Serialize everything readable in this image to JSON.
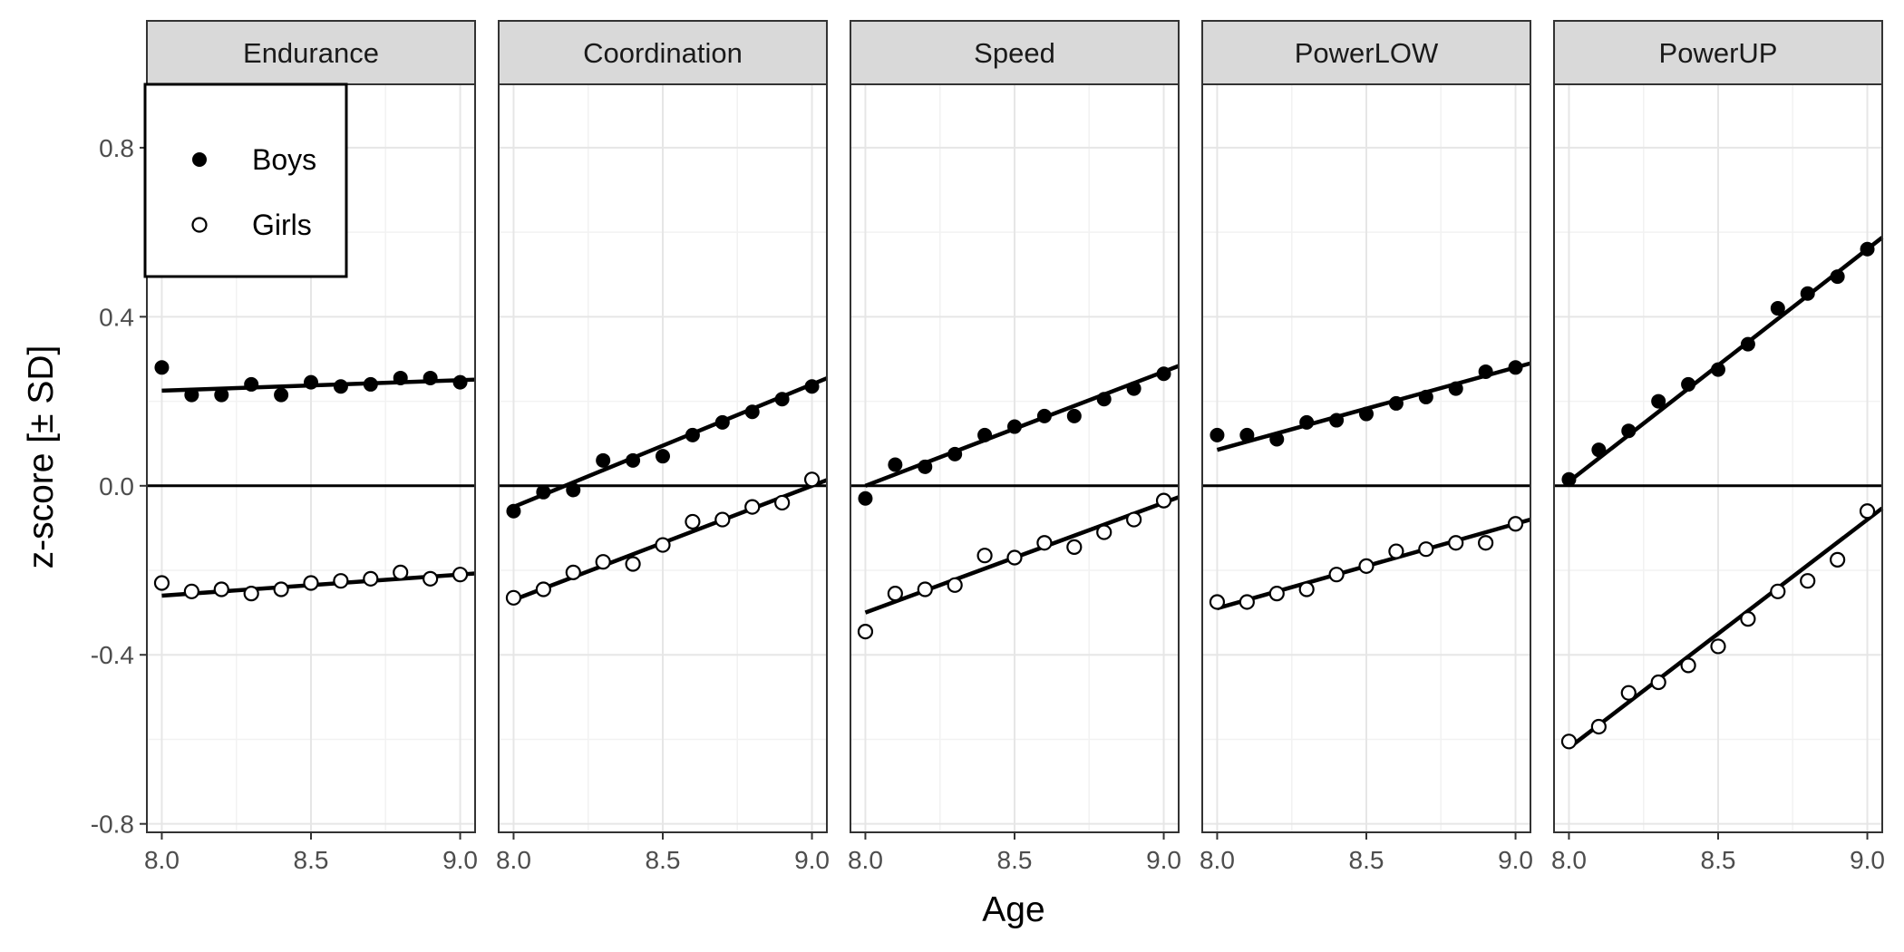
{
  "colors": {
    "strip_fill": "#d9d9d9",
    "panel_border": "#333333",
    "grid_major": "#e6e6e6",
    "grid_minor": "#f2f2f2",
    "zero_line": "#000000",
    "boys_fill": "#000000",
    "girls_fill": "#ffffff",
    "point_stroke": "#000000",
    "fit_line": "#000000"
  },
  "chart_data": {
    "type": "scatter",
    "facets": [
      "Endurance",
      "Coordination",
      "Speed",
      "PowerLOW",
      "PowerUP"
    ],
    "xlabel": "Age",
    "ylabel": "z-score [± SD]",
    "xlim": [
      7.95,
      9.05
    ],
    "ylim": [
      -0.82,
      0.95
    ],
    "x_ticks": [
      8.0,
      8.5,
      9.0
    ],
    "x_tick_labels": [
      "8.0",
      "8.5",
      "9.0"
    ],
    "y_ticks": [
      -0.8,
      -0.4,
      0.0,
      0.4,
      0.8
    ],
    "y_tick_labels": [
      "-0.8",
      "-0.4",
      "0.0",
      "0.4",
      "0.8"
    ],
    "grid": true,
    "zero_line": 0,
    "legend": {
      "position": "top-left",
      "entries": [
        {
          "label": "Boys",
          "marker": "filled-circle"
        },
        {
          "label": "Girls",
          "marker": "open-circle"
        }
      ]
    },
    "x": [
      8.0,
      8.1,
      8.2,
      8.3,
      8.4,
      8.5,
      8.6,
      8.7,
      8.8,
      8.9,
      9.0
    ],
    "panels": [
      {
        "facet": "Endurance",
        "series": [
          {
            "name": "Boys",
            "values": [
              0.28,
              0.215,
              0.215,
              0.24,
              0.215,
              0.245,
              0.235,
              0.24,
              0.255,
              0.255,
              0.245
            ],
            "fit": [
              0.225,
              0.25
            ]
          },
          {
            "name": "Girls",
            "values": [
              -0.23,
              -0.25,
              -0.245,
              -0.255,
              -0.245,
              -0.23,
              -0.225,
              -0.22,
              -0.205,
              -0.22,
              -0.21
            ],
            "fit": [
              -0.26,
              -0.21
            ]
          }
        ]
      },
      {
        "facet": "Coordination",
        "series": [
          {
            "name": "Boys",
            "values": [
              -0.06,
              -0.015,
              -0.01,
              0.06,
              0.06,
              0.07,
              0.12,
              0.15,
              0.175,
              0.205,
              0.235
            ],
            "fit": [
              -0.05,
              0.24
            ]
          },
          {
            "name": "Girls",
            "values": [
              -0.265,
              -0.245,
              -0.205,
              -0.18,
              -0.185,
              -0.14,
              -0.085,
              -0.08,
              -0.05,
              -0.04,
              0.015
            ],
            "fit": [
              -0.27,
              0.0
            ]
          }
        ]
      },
      {
        "facet": "Speed",
        "series": [
          {
            "name": "Boys",
            "values": [
              -0.03,
              0.05,
              0.045,
              0.075,
              0.12,
              0.14,
              0.165,
              0.165,
              0.205,
              0.23,
              0.265
            ],
            "fit": [
              0.0,
              0.27
            ]
          },
          {
            "name": "Girls",
            "values": [
              -0.345,
              -0.255,
              -0.245,
              -0.235,
              -0.165,
              -0.17,
              -0.135,
              -0.145,
              -0.11,
              -0.08,
              -0.035
            ],
            "fit": [
              -0.3,
              -0.04
            ]
          }
        ]
      },
      {
        "facet": "PowerLOW",
        "series": [
          {
            "name": "Boys",
            "values": [
              0.12,
              0.12,
              0.11,
              0.15,
              0.155,
              0.17,
              0.195,
              0.21,
              0.23,
              0.27,
              0.28
            ],
            "fit": [
              0.085,
              0.28
            ]
          },
          {
            "name": "Girls",
            "values": [
              -0.275,
              -0.275,
              -0.255,
              -0.245,
              -0.21,
              -0.19,
              -0.155,
              -0.15,
              -0.135,
              -0.135,
              -0.09
            ],
            "fit": [
              -0.29,
              -0.09
            ]
          }
        ]
      },
      {
        "facet": "PowerUP",
        "series": [
          {
            "name": "Boys",
            "values": [
              0.015,
              0.085,
              0.13,
              0.2,
              0.24,
              0.275,
              0.335,
              0.42,
              0.455,
              0.495,
              0.56
            ],
            "fit": [
              0.01,
              0.56
            ]
          },
          {
            "name": "Girls",
            "values": [
              -0.605,
              -0.57,
              -0.49,
              -0.465,
              -0.425,
              -0.38,
              -0.315,
              -0.25,
              -0.225,
              -0.175,
              -0.06
            ],
            "fit": [
              -0.62,
              -0.08
            ]
          }
        ]
      }
    ]
  }
}
